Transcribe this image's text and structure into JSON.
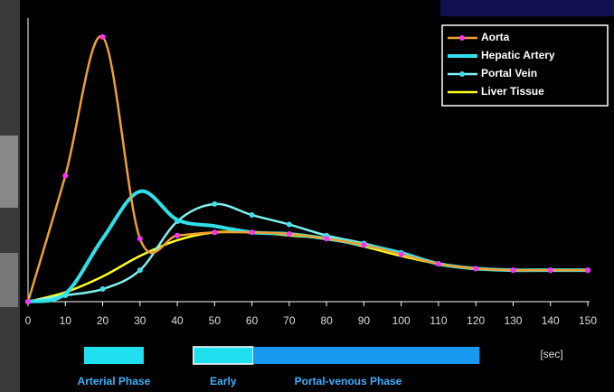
{
  "chart_data": {
    "type": "line",
    "x": [
      0,
      10,
      20,
      30,
      40,
      50,
      60,
      70,
      80,
      90,
      100,
      110,
      120,
      130,
      140,
      150
    ],
    "xlim": [
      0,
      150
    ],
    "xticks": [
      0,
      10,
      20,
      30,
      40,
      50,
      60,
      70,
      80,
      90,
      100,
      110,
      120,
      130,
      140,
      150
    ],
    "ylim": [
      0,
      9
    ],
    "x_unit": "[sec]",
    "legend": "upper right",
    "series": [
      {
        "name": "Aorta",
        "color": "#f0a030",
        "marker": "#ff30ff",
        "values": [
          0,
          4.0,
          8.4,
          2.0,
          2.1,
          2.2,
          2.2,
          2.15,
          2.0,
          1.8,
          1.5,
          1.2,
          1.05,
          1.0,
          1.0,
          1.0
        ]
      },
      {
        "name": "Hepatic Artery",
        "color": "#30e0e8",
        "values": [
          0,
          0.25,
          2.0,
          3.5,
          2.6,
          2.4,
          2.2,
          2.15,
          2.0,
          1.8,
          1.55,
          1.2,
          1.05,
          1.0,
          1.0,
          1.0
        ]
      },
      {
        "name": "Portal Vein",
        "color": "#80f0f0",
        "marker": "#40e0e8",
        "values": [
          0,
          0.2,
          0.4,
          1.0,
          2.55,
          3.1,
          2.75,
          2.45,
          2.1,
          1.85,
          1.55,
          1.2,
          1.05,
          1.0,
          1.0,
          1.0
        ]
      },
      {
        "name": "Liver Tissue",
        "color": "#ffff20",
        "values": [
          0,
          0.3,
          0.8,
          1.45,
          1.95,
          2.2,
          2.2,
          2.1,
          2.0,
          1.75,
          1.45,
          1.2,
          1.05,
          1.0,
          1.0,
          1.0
        ]
      }
    ],
    "phases": [
      {
        "label": "Arterial Phase",
        "start": 15,
        "end": 31,
        "color": "#20e0f0"
      },
      {
        "label": "Early",
        "start": 44.3,
        "end": 60.3,
        "color": "#20e0f0"
      },
      {
        "label": "Portal-venous Phase",
        "start": 60.3,
        "end": 121,
        "color": "#1898f0"
      }
    ]
  }
}
